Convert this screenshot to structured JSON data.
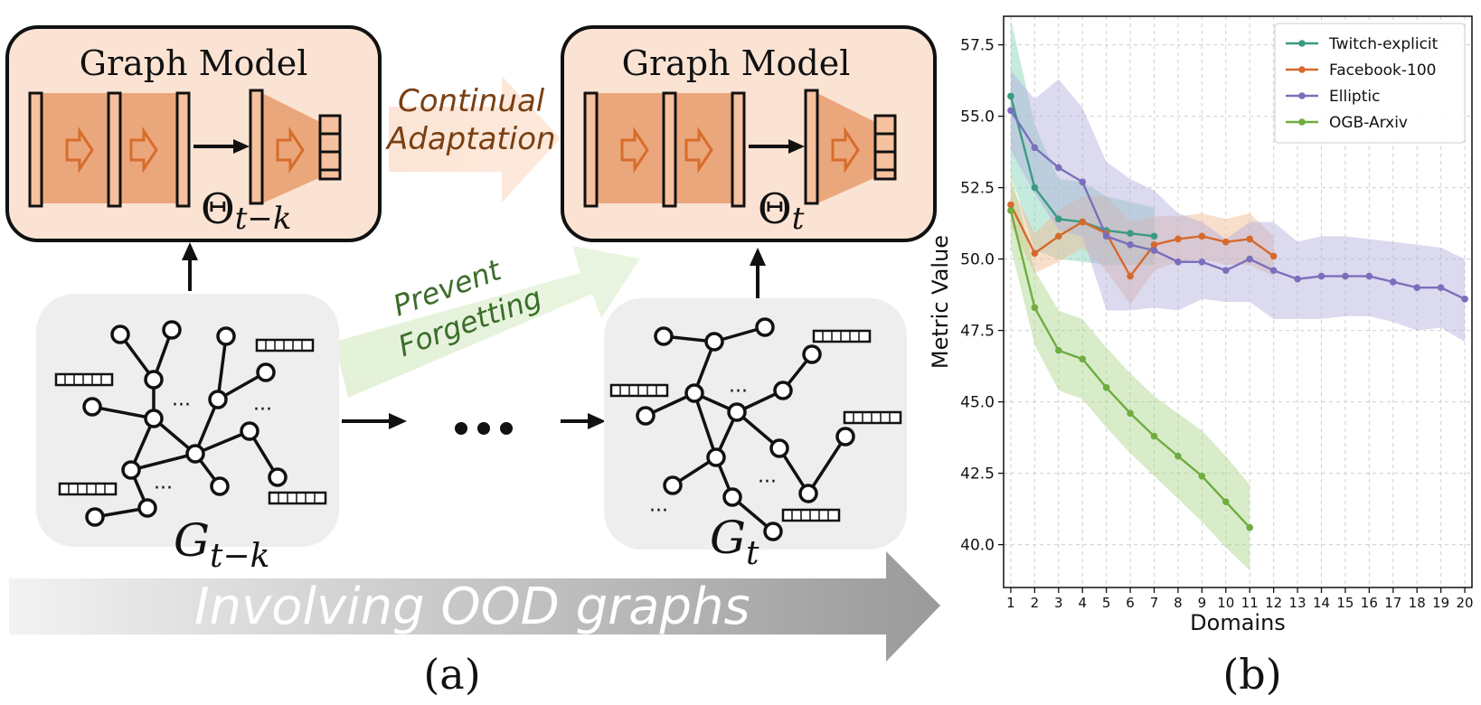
{
  "panel_a": {
    "model_title_left": "Graph Model",
    "model_title_right": "Graph Model",
    "theta_left": "Θ",
    "theta_left_sub": "t−k",
    "theta_right": "Θ",
    "theta_right_sub": "t",
    "continual_line1": "Continual",
    "continual_line2": "Adaptation",
    "prevent_line1": "Prevent",
    "prevent_line2": "Forgetting",
    "graph_left_label": "G",
    "graph_left_sub": "t−k",
    "graph_right_label": "G",
    "graph_right_sub": "t",
    "ood_banner": "Involving OOD graphs",
    "dots": "···",
    "panel_label": "(a)"
  },
  "panel_b_label": "(b)",
  "chart_data": {
    "type": "line",
    "title": "",
    "xlabel": "Domains",
    "ylabel": "Metric Value",
    "xlim": [
      0.7,
      20.3
    ],
    "ylim": [
      38.5,
      58.5
    ],
    "xticks": [
      1,
      2,
      3,
      4,
      5,
      6,
      7,
      8,
      9,
      10,
      11,
      12,
      13,
      14,
      15,
      16,
      17,
      18,
      19,
      20
    ],
    "yticks": [
      40.0,
      42.5,
      45.0,
      47.5,
      50.0,
      52.5,
      55.0,
      57.5
    ],
    "grid": true,
    "legend_position": "top-right",
    "series": [
      {
        "name": "Twitch-explicit",
        "color": "#3a9b82",
        "band": "#7fd1b5",
        "x": [
          1,
          2,
          3,
          4,
          5,
          6,
          7
        ],
        "y": [
          55.7,
          52.5,
          51.4,
          51.3,
          51.0,
          50.9,
          50.8
        ],
        "lower": [
          53.0,
          50.3,
          50.0,
          49.9,
          49.8,
          49.8,
          49.8
        ],
        "upper": [
          58.4,
          54.7,
          52.8,
          52.7,
          52.2,
          52.0,
          51.8
        ]
      },
      {
        "name": "Facebook-100",
        "color": "#d6692c",
        "band": "#f0b98f",
        "x": [
          1,
          2,
          3,
          4,
          5,
          6,
          7,
          8,
          9,
          10,
          11,
          12
        ],
        "y": [
          51.9,
          50.2,
          50.8,
          51.3,
          50.9,
          49.4,
          50.5,
          50.7,
          50.8,
          50.6,
          50.7,
          50.1
        ],
        "lower": [
          51.2,
          49.5,
          49.9,
          50.4,
          49.6,
          48.4,
          49.6,
          49.9,
          50.0,
          49.8,
          49.8,
          49.4
        ],
        "upper": [
          52.6,
          50.9,
          51.7,
          52.2,
          52.2,
          51.3,
          51.5,
          51.5,
          51.6,
          51.4,
          51.6,
          50.8
        ]
      },
      {
        "name": "Elliptic",
        "color": "#7a6fbb",
        "band": "#b2acdc",
        "x": [
          1,
          2,
          3,
          4,
          5,
          6,
          7,
          8,
          9,
          10,
          11,
          12,
          13,
          14,
          15,
          16,
          17,
          18,
          19,
          20
        ],
        "y": [
          55.2,
          53.9,
          53.2,
          52.7,
          50.8,
          50.5,
          50.3,
          49.9,
          49.9,
          49.6,
          50.0,
          49.6,
          49.3,
          49.4,
          49.4,
          49.4,
          49.2,
          49.0,
          49.0,
          48.6
        ],
        "lower": [
          53.8,
          52.3,
          51.0,
          50.8,
          48.2,
          48.2,
          48.3,
          48.2,
          48.6,
          48.5,
          48.5,
          47.9,
          47.9,
          47.9,
          48.0,
          48.0,
          47.8,
          47.5,
          47.6,
          47.1
        ],
        "upper": [
          56.6,
          55.6,
          56.3,
          55.3,
          53.4,
          52.8,
          52.4,
          51.6,
          51.3,
          50.7,
          51.3,
          51.3,
          50.6,
          50.8,
          50.8,
          50.7,
          50.6,
          50.5,
          50.4,
          50.0
        ]
      },
      {
        "name": "OGB-Arxiv",
        "color": "#6fad3f",
        "band": "#a8d48a",
        "x": [
          1,
          2,
          3,
          4,
          5,
          6,
          7,
          8,
          9,
          10,
          11
        ],
        "y": [
          51.7,
          48.3,
          46.8,
          46.5,
          45.5,
          44.6,
          43.8,
          43.1,
          42.4,
          41.5,
          40.6
        ],
        "lower": [
          50.4,
          47.0,
          45.4,
          45.1,
          44.1,
          43.2,
          42.4,
          41.6,
          40.8,
          39.9,
          39.1
        ],
        "upper": [
          53.1,
          49.6,
          48.2,
          47.9,
          46.9,
          46.0,
          45.2,
          44.6,
          44.0,
          43.1,
          42.1
        ]
      }
    ]
  }
}
